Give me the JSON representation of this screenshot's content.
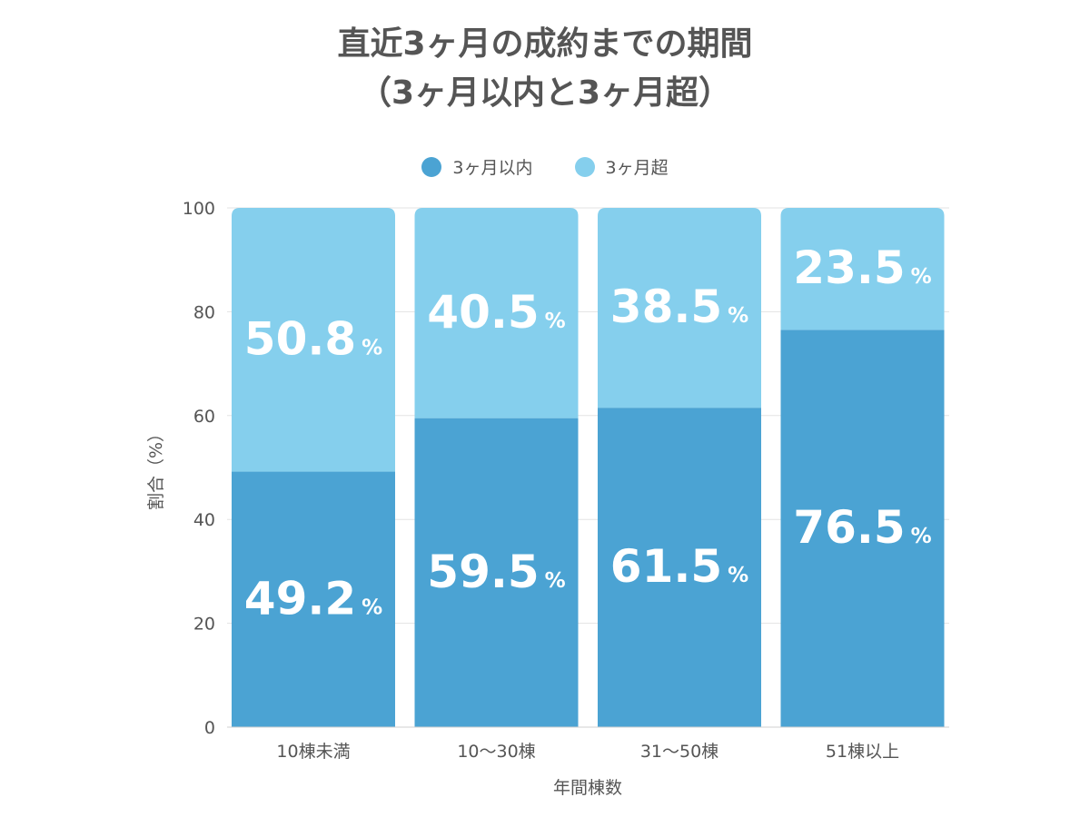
{
  "chart_data": {
    "type": "bar",
    "stacked": true,
    "title_line1": "直近3ヶ月の成約までの期間",
    "title_line2": "（3ヶ月以内と3ヶ月超）",
    "xlabel": "年間棟数",
    "ylabel": "割合（%）",
    "ylim": [
      0,
      100
    ],
    "yticks": [
      0,
      20,
      40,
      60,
      80,
      100
    ],
    "categories": [
      "10棟未満",
      "10〜30棟",
      "31〜50棟",
      "51棟以上"
    ],
    "value_suffix": "%",
    "series": [
      {
        "name": "3ヶ月以内",
        "values": [
          49.2,
          59.5,
          61.5,
          76.5
        ],
        "labels": [
          "49.2",
          "59.5",
          "61.5",
          "76.5"
        ],
        "color": "#4BA3D3"
      },
      {
        "name": "3ヶ月超",
        "values": [
          50.8,
          40.5,
          38.5,
          23.5
        ],
        "labels": [
          "50.8",
          "40.5",
          "38.5",
          "23.5"
        ],
        "color": "#85CFED"
      }
    ],
    "grid": true,
    "legend_position": "top-center"
  }
}
